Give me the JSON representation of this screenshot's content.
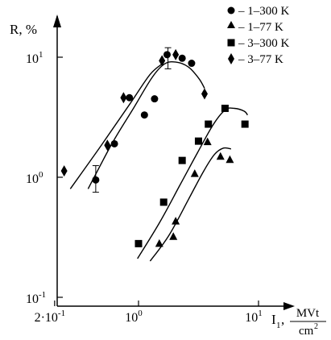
{
  "chart_data": {
    "type": "scatter",
    "title": "",
    "ylabel": "R, %",
    "xlabel": {
      "prefix": "I",
      "subscript": "1",
      "sep": ",",
      "unit_num": "MVt",
      "unit_den": "cm",
      "unit_den_sup": "2"
    },
    "x_scale": "log",
    "y_scale": "log",
    "xlim": [
      0.16,
      15
    ],
    "ylim": [
      0.1,
      20
    ],
    "x_ticks": [
      {
        "value": 0.2,
        "mantissa": "2·10",
        "exp": "-1"
      },
      {
        "value": 1,
        "mantissa": "10",
        "exp": "0"
      },
      {
        "value": 10,
        "mantissa": "10",
        "exp": "1"
      }
    ],
    "y_ticks": [
      {
        "value": 0.1,
        "mantissa": "10",
        "exp": "-1"
      },
      {
        "value": 1,
        "mantissa": "10",
        "exp": "0"
      },
      {
        "value": 10,
        "mantissa": "10",
        "exp": "1"
      }
    ],
    "grid": false,
    "legend_position": "top-right",
    "series": [
      {
        "name": "– 1–300 K",
        "marker": "circle",
        "points": [
          [
            0.44,
            0.95
          ],
          [
            0.63,
            1.9
          ],
          [
            0.84,
            4.6
          ],
          [
            1.12,
            3.3
          ],
          [
            1.36,
            4.5
          ],
          [
            1.73,
            10.5
          ],
          [
            2.31,
            9.8
          ],
          [
            2.77,
            8.9
          ]
        ],
        "error_bars": [
          {
            "x": 0.44,
            "low": 0.75,
            "high": 1.25
          }
        ],
        "fit": [
          [
            0.38,
            0.8
          ],
          [
            0.6,
            1.9
          ],
          [
            0.9,
            3.7
          ],
          [
            1.3,
            6.8
          ],
          [
            1.65,
            8.8
          ],
          [
            2.05,
            9.1
          ],
          [
            2.6,
            8.3
          ],
          [
            3.2,
            6.6
          ],
          [
            3.55,
            5.5
          ]
        ]
      },
      {
        "name": "– 1–77 K",
        "marker": "triangle",
        "points": [
          [
            1.49,
            0.28
          ],
          [
            1.95,
            0.32
          ],
          [
            2.04,
            0.43
          ],
          [
            2.94,
            1.07
          ],
          [
            3.76,
            1.97
          ],
          [
            4.82,
            1.49
          ],
          [
            5.77,
            1.4
          ]
        ],
        "fit": [
          [
            1.25,
            0.2
          ],
          [
            1.8,
            0.33
          ],
          [
            2.6,
            0.65
          ],
          [
            3.5,
            1.13
          ],
          [
            4.3,
            1.55
          ],
          [
            5.1,
            1.75
          ],
          [
            5.9,
            1.72
          ]
        ]
      },
      {
        "name": "– 3–300 K",
        "marker": "square",
        "points": [
          [
            1.0,
            0.28
          ],
          [
            1.62,
            0.62
          ],
          [
            2.31,
            1.38
          ],
          [
            3.16,
            2.0
          ],
          [
            3.82,
            2.77
          ],
          [
            5.26,
            3.75
          ],
          [
            7.71,
            2.77
          ]
        ],
        "fit": [
          [
            0.98,
            0.21
          ],
          [
            1.5,
            0.42
          ],
          [
            2.2,
            0.85
          ],
          [
            3.1,
            1.6
          ],
          [
            4.2,
            2.75
          ],
          [
            5.3,
            3.65
          ],
          [
            6.3,
            3.75
          ],
          [
            7.6,
            3.55
          ],
          [
            8.1,
            3.3
          ]
        ]
      },
      {
        "name": "– 3–77 K",
        "marker": "diamond",
        "points": [
          [
            0.24,
            1.13
          ],
          [
            0.55,
            1.85
          ],
          [
            0.75,
            4.6
          ],
          [
            1.57,
            9.35
          ],
          [
            2.04,
            10.5
          ],
          [
            3.55,
            4.95
          ]
        ],
        "error_bars": [
          {
            "x": 1.76,
            "low": 8.0,
            "high": 12.0
          }
        ],
        "fit": [
          [
            0.27,
            0.8
          ],
          [
            0.5,
            1.9
          ],
          [
            0.85,
            4.1
          ],
          [
            1.25,
            7.2
          ],
          [
            1.6,
            8.9
          ]
        ]
      }
    ]
  }
}
